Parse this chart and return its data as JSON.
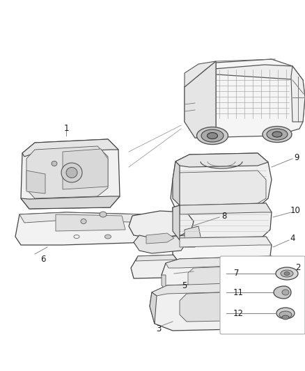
{
  "bg_color": "#ffffff",
  "fig_width": 4.38,
  "fig_height": 5.33,
  "dpi": 100,
  "text_color": "#1a1a1a",
  "line_color": "#888888",
  "part_color": "#333333",
  "fs": 8.5
}
